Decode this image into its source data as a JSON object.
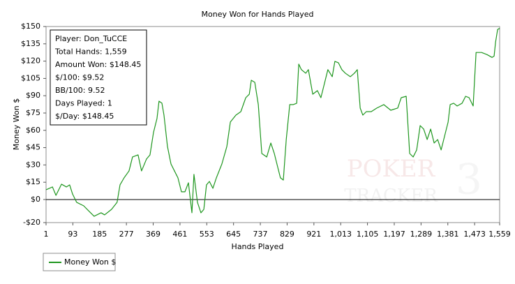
{
  "chart_data": {
    "type": "line",
    "title": "Money Won for Hands Played",
    "xlabel": "Hands Played",
    "ylabel": "Money Won $",
    "xlim": [
      1,
      1559
    ],
    "ylim": [
      -20,
      150
    ],
    "xticks": [
      1,
      93,
      185,
      277,
      369,
      461,
      553,
      645,
      737,
      829,
      921,
      {
        "value": 1013,
        "label": "1,013"
      },
      {
        "value": 1105,
        "label": "1,105"
      },
      {
        "value": 1197,
        "label": "1,197"
      },
      {
        "value": 1289,
        "label": "1,289"
      },
      {
        "value": 1381,
        "label": "1,381"
      },
      {
        "value": 1473,
        "label": "1,473"
      },
      {
        "value": 1559,
        "label": "1,559"
      }
    ],
    "yticks": [
      {
        "value": -20,
        "label": "-$20"
      },
      {
        "value": 0,
        "label": "$0"
      },
      {
        "value": 15,
        "label": "$15"
      },
      {
        "value": 30,
        "label": "$30"
      },
      {
        "value": 45,
        "label": "$45"
      },
      {
        "value": 60,
        "label": "$60"
      },
      {
        "value": 75,
        "label": "$75"
      },
      {
        "value": 90,
        "label": "$90"
      },
      {
        "value": 105,
        "label": "$105"
      },
      {
        "value": 120,
        "label": "$120"
      },
      {
        "value": 135,
        "label": "$135"
      },
      {
        "value": 150,
        "label": "$150"
      }
    ],
    "x": [
      1,
      23,
      35,
      54,
      71,
      82,
      92,
      106,
      130,
      154,
      166,
      190,
      202,
      226,
      245,
      255,
      269,
      286,
      298,
      317,
      329,
      346,
      358,
      370,
      382,
      389,
      399,
      406,
      418,
      430,
      442,
      454,
      466,
      478,
      490,
      502,
      509,
      521,
      533,
      543,
      552,
      562,
      574,
      586,
      605,
      622,
      634,
      653,
      670,
      687,
      699,
      706,
      718,
      730,
      742,
      759,
      773,
      785,
      797,
      806,
      816,
      826,
      838,
      850,
      862,
      869,
      878,
      893,
      902,
      917,
      933,
      945,
      957,
      969,
      984,
      993,
      1005,
      1017,
      1029,
      1046,
      1060,
      1070,
      1080,
      1089,
      1101,
      1118,
      1137,
      1161,
      1185,
      1209,
      1221,
      1238,
      1250,
      1262,
      1274,
      1286,
      1298,
      1310,
      1322,
      1334,
      1346,
      1358,
      1370,
      1382,
      1389,
      1401,
      1413,
      1430,
      1442,
      1454,
      1468,
      1478,
      1497,
      1516,
      1533,
      1540,
      1545,
      1552,
      1559
    ],
    "series": [
      {
        "name": "Money Won $",
        "color": "#1e961e",
        "values": [
          8.5,
          10.9,
          3.6,
          13.3,
          10.9,
          12.7,
          4.8,
          -2.4,
          -5.4,
          -11.5,
          -14.5,
          -11.5,
          -13.3,
          -8.5,
          -2.4,
          12.7,
          18.8,
          24.8,
          36.9,
          38.7,
          24.8,
          35.1,
          38.7,
          58.1,
          70.2,
          85.3,
          83.5,
          73.2,
          46,
          30.9,
          24.8,
          18.8,
          6.7,
          6.7,
          14.5,
          -11.5,
          21.8,
          -2.4,
          -11.5,
          -8.5,
          12.7,
          15.7,
          9.7,
          18.8,
          30.9,
          46,
          67.2,
          73.2,
          76.2,
          88.3,
          91.3,
          103.4,
          101.6,
          82.3,
          39.9,
          36.9,
          49,
          39.9,
          27.8,
          18.8,
          16.9,
          52,
          82.3,
          82.3,
          83.5,
          117.4,
          112.6,
          109.5,
          112.6,
          91.3,
          94.4,
          88.3,
          100.4,
          112.6,
          106.5,
          119.8,
          118.6,
          112.6,
          109.5,
          106.5,
          109.5,
          112.6,
          79.3,
          73.2,
          76.2,
          76.2,
          79.3,
          82.3,
          77.4,
          79.3,
          88.3,
          89.5,
          39.9,
          36.9,
          43,
          64.1,
          61.1,
          52,
          61.1,
          49,
          52,
          43,
          55.1,
          67.2,
          82.3,
          83.5,
          81.1,
          83.5,
          89.5,
          88.3,
          81.1,
          127.5,
          127.5,
          125.6,
          123.2,
          124.4,
          136.5,
          147.4,
          148.45
        ]
      }
    ],
    "info_box": [
      "Player: Don_TuCCE",
      "Total Hands: 1,559",
      "Amount Won: $148.45",
      "$/100: $9.52",
      "BB/100: 9.52",
      "Days Played: 1",
      "$/Day: $148.45"
    ],
    "watermark": {
      "top": "POKER",
      "bottom": "TRACKER",
      "mark": "3"
    }
  }
}
